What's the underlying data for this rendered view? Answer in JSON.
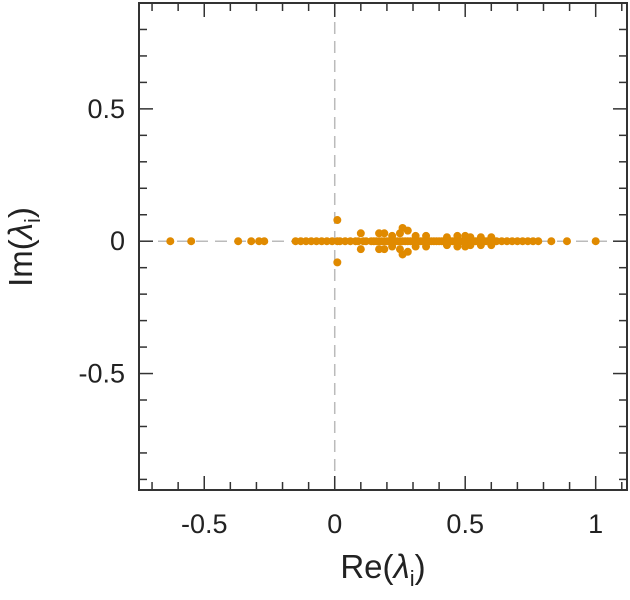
{
  "chart_data": {
    "type": "scatter",
    "title": "",
    "xlabel": {
      "text": "Re(",
      "symbol": "λ",
      "subscript": "i",
      "close": ")"
    },
    "ylabel": {
      "text": "Im(",
      "symbol": "λ",
      "subscript": "i",
      "close": ")"
    },
    "xlim": [
      -0.75,
      1.12
    ],
    "ylim": [
      -0.94,
      0.9
    ],
    "x_ticks": [
      -0.5,
      0,
      0.5,
      1
    ],
    "x_tick_labels": [
      "-0.5",
      "0",
      "0.5",
      "1"
    ],
    "y_ticks": [
      -0.5,
      0,
      0.5
    ],
    "y_tick_labels": [
      "-0.5",
      "0",
      "0.5"
    ],
    "grid": false,
    "zero_lines": true,
    "marker_color": "#e08a00",
    "zero_line_color": "#bbbbbb",
    "series": [
      {
        "x": [
          -0.63,
          -0.55,
          -0.37,
          -0.32,
          -0.29,
          -0.27,
          -0.15,
          -0.13,
          -0.11,
          -0.09,
          -0.07,
          -0.05,
          -0.03,
          -0.01,
          0.01,
          0.02,
          0.04,
          0.06,
          0.08,
          0.09,
          0.11,
          0.12,
          0.14,
          0.15,
          0.16,
          0.17,
          0.18,
          0.19,
          0.2,
          0.21,
          0.22,
          0.23,
          0.24,
          0.25,
          0.26,
          0.27,
          0.28,
          0.29,
          0.3,
          0.31,
          0.32,
          0.33,
          0.34,
          0.35,
          0.36,
          0.37,
          0.38,
          0.39,
          0.4,
          0.41,
          0.42,
          0.43,
          0.44,
          0.45,
          0.46,
          0.47,
          0.48,
          0.49,
          0.5,
          0.51,
          0.52,
          0.53,
          0.54,
          0.55,
          0.56,
          0.57,
          0.58,
          0.6,
          0.62,
          0.64,
          0.66,
          0.68,
          0.7,
          0.72,
          0.74,
          0.76,
          0.78,
          0.83,
          0.89,
          1.0,
          0.01,
          0.01,
          0.1,
          0.1,
          0.17,
          0.17,
          0.19,
          0.19,
          0.22,
          0.22,
          0.25,
          0.25,
          0.26,
          0.26,
          0.28,
          0.28,
          0.31,
          0.31,
          0.35,
          0.35,
          0.43,
          0.43,
          0.47,
          0.47,
          0.5,
          0.5,
          0.52,
          0.52,
          0.56,
          0.56,
          0.6,
          0.6
        ],
        "y": [
          0,
          0,
          0,
          0,
          0,
          0,
          0,
          0,
          0,
          0,
          0,
          0,
          0,
          0,
          0,
          0,
          0,
          0,
          0,
          0,
          0,
          0,
          0,
          0,
          0,
          0,
          0,
          0,
          0,
          0,
          0,
          0,
          0,
          0,
          0,
          0,
          0,
          0,
          0,
          0,
          0,
          0,
          0,
          0,
          0,
          0,
          0,
          0,
          0,
          0,
          0,
          0,
          0,
          0,
          0,
          0,
          0,
          0,
          0,
          0,
          0,
          0,
          0,
          0,
          0,
          0,
          0,
          0,
          0,
          0,
          0,
          0,
          0,
          0,
          0,
          0,
          0,
          0,
          0,
          0,
          0.08,
          -0.08,
          0.03,
          -0.03,
          0.03,
          -0.03,
          0.03,
          -0.03,
          0.02,
          -0.02,
          0.03,
          -0.03,
          0.05,
          -0.05,
          0.04,
          -0.04,
          0.02,
          -0.02,
          0.02,
          -0.02,
          0.015,
          -0.015,
          0.02,
          -0.02,
          0.02,
          -0.02,
          0.015,
          -0.015,
          0.015,
          -0.015,
          0.015,
          -0.015
        ]
      }
    ]
  }
}
